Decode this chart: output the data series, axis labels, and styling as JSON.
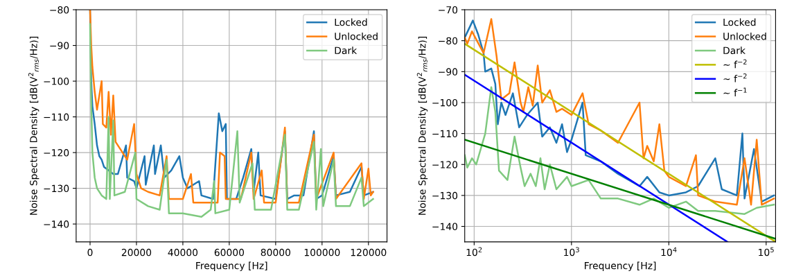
{
  "chart_data": [
    {
      "type": "line",
      "xlabel": "Frequency [Hz]",
      "ylabel": "Noise Spectral Density [dB(V$^{2}$$_{rms}$/Hz)]",
      "xlim": [
        -6000,
        128000
      ],
      "ylim": [
        -145,
        -80
      ],
      "xticks": [
        0,
        20000,
        40000,
        60000,
        80000,
        100000,
        120000
      ],
      "yticks": [
        -140,
        -130,
        -120,
        -110,
        -100,
        -90,
        -80
      ],
      "grid": true,
      "legend": "top right",
      "series": [
        {
          "name": "Locked",
          "color": "#1f77b4",
          "x": [
            0,
            500,
            1000,
            2000,
            3000,
            4000,
            5000,
            6000,
            8000,
            10000,
            12000,
            15500,
            16000,
            19000,
            20000,
            23500,
            24000,
            27500,
            28000,
            30500,
            32000,
            35000,
            38500,
            40000,
            42000,
            47000,
            48000,
            53000,
            55500,
            57000,
            58500,
            59000,
            63000,
            66000,
            69500,
            70500,
            72500,
            73500,
            80000,
            84000,
            85000,
            88000,
            92000,
            96500,
            97500,
            100000,
            105000,
            106000,
            112000,
            117000,
            118000,
            122000
          ],
          "values": [
            -80,
            -100,
            -107,
            -112,
            -118,
            -121,
            -122,
            -124,
            -125,
            -126,
            -126,
            -118,
            -127,
            -128,
            -130,
            -121,
            -129,
            -118,
            -126,
            -118,
            -127,
            -125,
            -121,
            -127,
            -130,
            -128,
            -132,
            -133,
            -109,
            -114,
            -112,
            -133,
            -133,
            -127,
            -119,
            -131,
            -120,
            -132,
            -133,
            -114,
            -133,
            -132,
            -132,
            -114,
            -133,
            -132,
            -121,
            -132,
            -131,
            -124,
            -132,
            -131
          ]
        },
        {
          "name": "Unlocked",
          "color": "#ff7f0e",
          "x": [
            0,
            500,
            1000,
            2000,
            3000,
            5000,
            5500,
            7000,
            8000,
            9000,
            10000,
            11000,
            13000,
            16000,
            19000,
            20000,
            22000,
            25000,
            30000,
            33000,
            34000,
            40000,
            43500,
            44500,
            50000,
            55000,
            56000,
            58000,
            58500,
            65000,
            69500,
            70500,
            74000,
            75000,
            80000,
            84000,
            85000,
            90000,
            96500,
            97500,
            105000,
            106000,
            117000,
            118000,
            120000,
            121000,
            122000
          ],
          "values": [
            -80,
            -90,
            -96,
            -103,
            -108,
            -100,
            -112,
            -113,
            -103,
            -115,
            -104,
            -117,
            -119,
            -122,
            -112,
            -126,
            -130,
            -131,
            -132,
            -121,
            -133,
            -133,
            -126,
            -134,
            -134,
            -134,
            -120,
            -121,
            -133,
            -133,
            -120,
            -133,
            -125,
            -134,
            -134,
            -113,
            -134,
            -134,
            -115,
            -133,
            -120,
            -133,
            -123,
            -133,
            -124.5,
            -132,
            -131
          ]
        },
        {
          "name": "Dark",
          "color": "#7fc97f",
          "x": [
            0,
            300,
            1000,
            2000,
            3000,
            5000,
            7000,
            8000,
            8500,
            10000,
            10500,
            15000,
            19500,
            20000,
            25000,
            30000,
            33000,
            34000,
            40000,
            48000,
            52000,
            53500,
            54000,
            60000,
            63500,
            64500,
            70000,
            71000,
            78000,
            84000,
            85000,
            90000,
            96500,
            97500,
            99500,
            100500,
            105000,
            106000,
            112000,
            117000,
            118000,
            122000
          ],
          "values": [
            -84,
            -100,
            -120,
            -127,
            -130,
            -132,
            -133,
            -110,
            -133,
            -111,
            -132,
            -131,
            -120,
            -133,
            -135,
            -136,
            -122,
            -137,
            -137,
            -138,
            -136,
            -128,
            -137,
            -136,
            -114,
            -134,
            -123,
            -136,
            -136,
            -115,
            -136,
            -136,
            -117,
            -136,
            -119,
            -135,
            -122,
            -135,
            -135,
            -127,
            -135,
            -133
          ]
        }
      ]
    },
    {
      "type": "line",
      "xlabel": "Frequency [Hz]",
      "ylabel": "Noise Spectral Density [dB(V$^{2}$$_{rms}$/Hz)]",
      "log": "x",
      "xlim": [
        80,
        125000
      ],
      "ylim": [
        -145,
        -70
      ],
      "xticks": [
        {
          "value": 100,
          "label": "10$^{2}$"
        },
        {
          "value": 1000,
          "label": "10$^{3}$"
        },
        {
          "value": 10000,
          "label": "10$^{4}$"
        },
        {
          "value": 100000,
          "label": "10$^{5}$"
        }
      ],
      "yticks": [
        -140,
        -130,
        -120,
        -110,
        -100,
        -90,
        -80,
        -70
      ],
      "grid": true,
      "legend": "top right",
      "series": [
        {
          "name": "Locked",
          "color": "#1f77b4",
          "x": [
            80,
            97,
            110,
            125,
            130,
            150,
            165,
            175,
            190,
            210,
            250,
            290,
            350,
            450,
            500,
            600,
            700,
            800,
            900,
            1000,
            1300,
            1400,
            2000,
            3000,
            5000,
            6000,
            8000,
            10000,
            15000,
            20000,
            30000,
            35000,
            50000,
            57000,
            60000,
            75000,
            90000,
            120000
          ],
          "values": [
            -79,
            -73.5,
            -78,
            -84,
            -90,
            -89,
            -94,
            -107,
            -100,
            -104,
            -97,
            -108,
            -104,
            -100,
            -111,
            -108,
            -113,
            -107,
            -116,
            -112,
            -100,
            -117,
            -119,
            -123,
            -127,
            -124,
            -129,
            -130,
            -129,
            -127,
            -118,
            -128,
            -130,
            -110,
            -131,
            -115,
            -132,
            -130
          ]
        },
        {
          "name": "Unlocked",
          "color": "#ff7f0e",
          "x": [
            80,
            85,
            95,
            125,
            150,
            170,
            190,
            230,
            260,
            300,
            320,
            360,
            400,
            450,
            500,
            600,
            700,
            800,
            1000,
            1300,
            1500,
            2000,
            3000,
            5000,
            5500,
            6000,
            7000,
            8000,
            9000,
            10000,
            15000,
            19000,
            20000,
            30000,
            50000,
            60000,
            70000,
            80000,
            90000,
            120000
          ],
          "values": [
            -79,
            -81,
            -77,
            -84,
            -73,
            -85,
            -99,
            -97,
            -87,
            -100,
            -103,
            -95,
            -101,
            -88,
            -100,
            -96,
            -103,
            -102,
            -104,
            -97,
            -107,
            -109,
            -113,
            -100,
            -118,
            -114,
            -119,
            -107,
            -122,
            -124,
            -127,
            -117,
            -130,
            -132,
            -133,
            -118,
            -133,
            -112,
            -133,
            -131
          ]
        },
        {
          "name": "Dark",
          "color": "#7fc97f",
          "x": [
            80,
            85,
            95,
            105,
            130,
            150,
            165,
            180,
            220,
            260,
            300,
            330,
            380,
            430,
            480,
            530,
            600,
            700,
            900,
            1000,
            1500,
            2000,
            3000,
            5000,
            7000,
            10000,
            15000,
            20000,
            30000,
            60000,
            80000,
            120000
          ],
          "values": [
            -117,
            -121,
            -118,
            -120,
            -110,
            -95,
            -103,
            -122,
            -125,
            -111,
            -121,
            -127,
            -123,
            -127,
            -118,
            -128,
            -120,
            -128,
            -124,
            -127,
            -125,
            -131,
            -131,
            -133,
            -131,
            -134,
            -132,
            -135,
            -135,
            -136,
            -134,
            -133
          ]
        },
        {
          "name": "~ f$^{−2}$",
          "color": "#bfbf00",
          "x": [
            80,
            125000
          ],
          "values": [
            -81,
            -145
          ]
        },
        {
          "name": "~ f$^{−2}$",
          "color": "#0000ff",
          "x": [
            80,
            40000
          ],
          "values": [
            -91,
            -145
          ]
        },
        {
          "name": "~ f$^{−1}$",
          "color": "#008000",
          "x": [
            80,
            125000
          ],
          "values": [
            -112,
            -144
          ]
        }
      ]
    }
  ]
}
